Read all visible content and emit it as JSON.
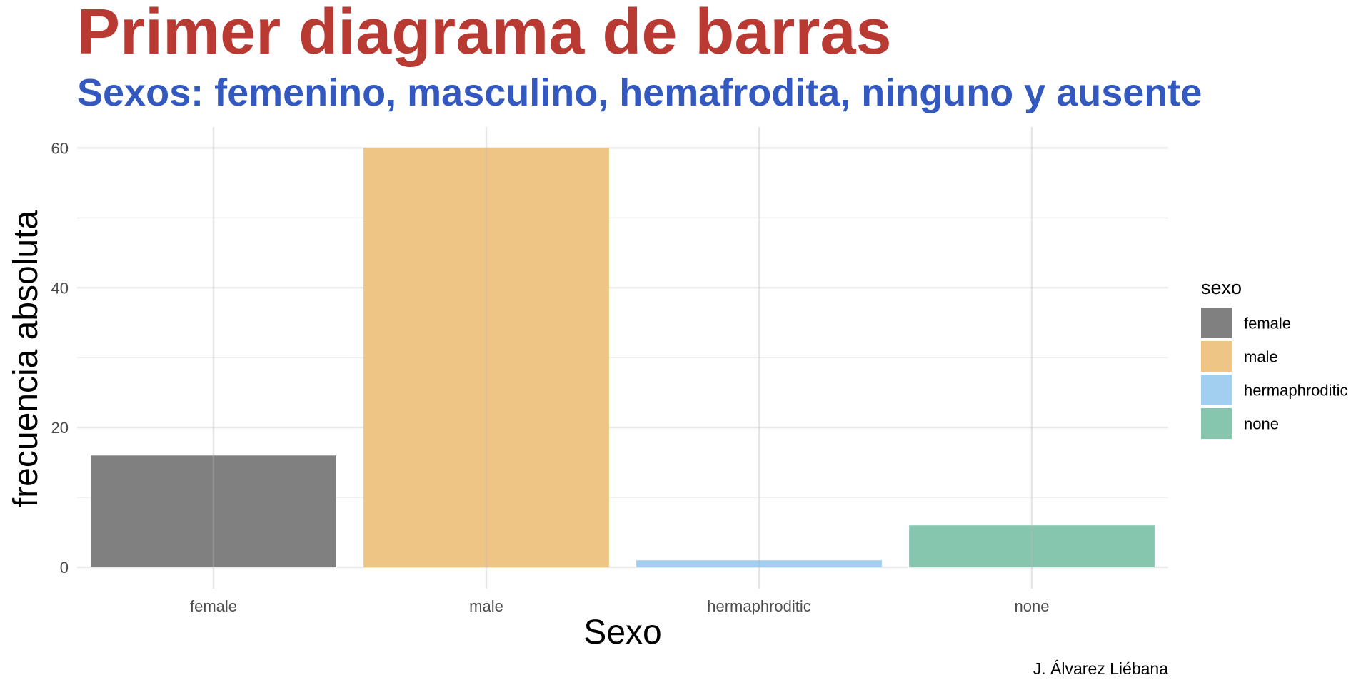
{
  "chart_data": {
    "type": "bar",
    "title": "Primer diagrama de barras",
    "subtitle": "Sexos: femenino, masculino, hemafrodita, ninguno y ausente",
    "xlabel": "Sexo",
    "ylabel": "frecuencia absoluta",
    "caption": "J. Álvarez Liébana",
    "categories": [
      "female",
      "male",
      "hermaphroditic",
      "none"
    ],
    "values": [
      16,
      60,
      1,
      6
    ],
    "ylim": [
      0,
      63
    ],
    "yticks": [
      0,
      20,
      40,
      60
    ],
    "ytick_labels": [
      "0",
      "20",
      "40",
      "60"
    ],
    "grid": true,
    "legend": {
      "title": "sexo",
      "placement": "right",
      "entries": [
        "female",
        "male",
        "hermaphroditic",
        "none"
      ]
    },
    "colors": {
      "female": "#808080",
      "male": "#EEC584",
      "hermaphroditic": "#A2CFF0",
      "none": "#87C6AE",
      "title": "#B83A32",
      "subtitle": "#3358BF",
      "grid": "#EBEBEB"
    }
  }
}
